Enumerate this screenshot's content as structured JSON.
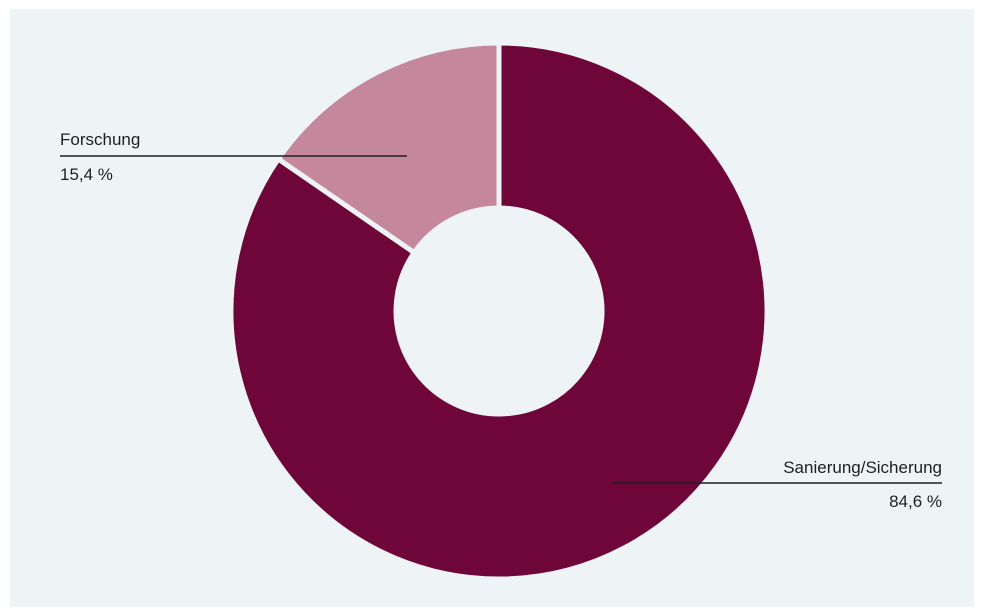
{
  "chart_data": {
    "type": "pie",
    "donut": true,
    "title": "",
    "categories": [
      "Sanierung/Sicherung",
      "Forschung"
    ],
    "values": [
      84.6,
      15.4
    ],
    "value_labels": [
      "84,6 %",
      "15,4 %"
    ],
    "colors": [
      "#6e0639",
      "#c4879c"
    ],
    "legend": "none",
    "label_style": "callout lines"
  },
  "colors": {
    "background": "#eef3f6",
    "leader_line": "#1f1f1f",
    "separator": "#eef3f6"
  }
}
